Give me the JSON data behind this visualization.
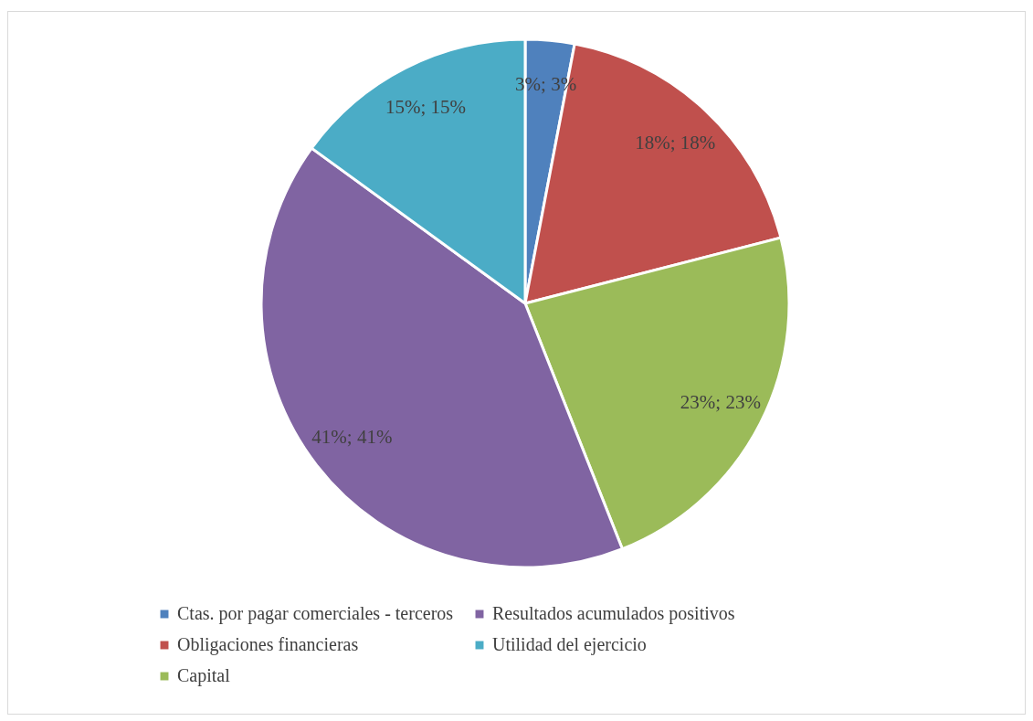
{
  "chart_data": {
    "type": "pie",
    "categories": [
      "Ctas. por pagar comerciales - terceros",
      "Obligaciones financieras",
      "Capital",
      "Resultados acumulados positivos",
      "Utilidad del ejercicio"
    ],
    "values": [
      3,
      18,
      23,
      41,
      15
    ],
    "colors": [
      "#4f81bd",
      "#c0504d",
      "#9bbb59",
      "#8064a2",
      "#4bacc6"
    ],
    "value_labels": [
      "3%; 3%",
      "18%; 18%",
      "23%; 23%",
      "41%; 41%",
      "15%; 15%"
    ],
    "legend": "bottom"
  }
}
